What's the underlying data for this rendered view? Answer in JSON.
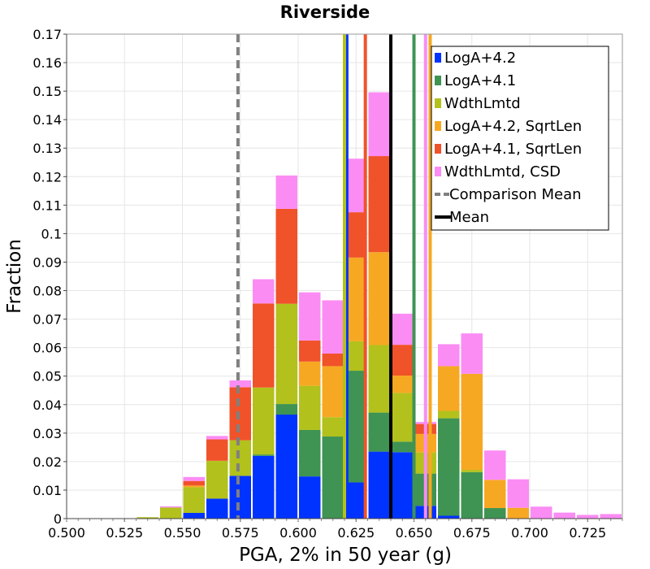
{
  "chart_data": {
    "type": "bar",
    "title": "Riverside",
    "xlabel": "PGA, 2% in 50 year (g)",
    "ylabel": "Fraction",
    "xlim": [
      0.5,
      0.74
    ],
    "ylim": [
      0,
      0.17
    ],
    "xticks": [
      "0.500",
      "0.525",
      "0.550",
      "0.575",
      "0.600",
      "0.625",
      "0.650",
      "0.675",
      "0.700",
      "0.725"
    ],
    "yticks": [
      "0",
      "0.01",
      "0.02",
      "0.03",
      "0.04",
      "0.05",
      "0.06",
      "0.07",
      "0.08",
      "0.09",
      "0.1",
      "0.11",
      "0.12",
      "0.13",
      "0.14",
      "0.15",
      "0.16",
      "0.17"
    ],
    "grid": true,
    "legend_position": "top-right",
    "bin_width": 0.01,
    "bin_centers": [
      0.505,
      0.515,
      0.525,
      0.535,
      0.545,
      0.555,
      0.565,
      0.575,
      0.585,
      0.595,
      0.605,
      0.615,
      0.625,
      0.635,
      0.645,
      0.655,
      0.665,
      0.675,
      0.685,
      0.695,
      0.705,
      0.715,
      0.725,
      0.735
    ],
    "series": [
      {
        "name": "LogA+4.2",
        "color": "#0033ff",
        "values": [
          0,
          0,
          0,
          0,
          0,
          0.002,
          0.007,
          0.015,
          0.022,
          0.0365,
          0.0148,
          0,
          0.0127,
          0.0235,
          0.0233,
          0.0045,
          0.001,
          0,
          0,
          0,
          0,
          0,
          0,
          0
        ]
      },
      {
        "name": "LogA+4.1",
        "color": "#3f9353",
        "values": [
          0,
          0,
          0,
          0,
          0,
          0,
          0,
          0,
          0.0005,
          0.0037,
          0.0163,
          0.0288,
          0.0392,
          0.0137,
          0.0037,
          0.0113,
          0.0342,
          0.0163,
          0.0037,
          0,
          0,
          0,
          0,
          0
        ]
      },
      {
        "name": "WdthLmtd",
        "color": "#b2c11c",
        "values": [
          0,
          0,
          0,
          0.0005,
          0.0039,
          0.009,
          0.0133,
          0.0125,
          0.0235,
          0.0352,
          0.0155,
          0.0068,
          0.0103,
          0.0237,
          0.0171,
          0.0074,
          0.0026,
          0.0008,
          0,
          0,
          0,
          0,
          0,
          0
        ]
      },
      {
        "name": "LogA+4.2, SqrtLen",
        "color": "#f7a823",
        "values": [
          0,
          0,
          0,
          0,
          0,
          0.0006,
          0,
          0,
          0,
          0,
          0.0085,
          0.0179,
          0.0294,
          0.0326,
          0.0061,
          0.0065,
          0.0157,
          0.0337,
          0.0099,
          0.0038,
          0,
          0,
          0,
          0
        ]
      },
      {
        "name": "LogA+4.1, SqrtLen",
        "color": "#f0522a",
        "values": [
          0,
          0,
          0,
          0,
          0,
          0.0016,
          0.0075,
          0.0186,
          0.0295,
          0.0333,
          0.0074,
          0.0044,
          0.0159,
          0.0337,
          0.0108,
          0.0035,
          0,
          0,
          0,
          0,
          0,
          0,
          0,
          0
        ]
      },
      {
        "name": "WdthLmtd, CSD",
        "color": "#fb8cf4",
        "values": [
          0,
          0,
          0,
          0,
          0.0004,
          0.0014,
          0.0012,
          0.0024,
          0.0085,
          0.0117,
          0.0169,
          0.0187,
          0.0188,
          0.0224,
          0.0109,
          0.0007,
          0.0077,
          0.0142,
          0.0103,
          0.01,
          0.0042,
          0.0021,
          0.0013,
          0.0016
        ]
      }
    ],
    "reference_lines": [
      {
        "name": "Comparison Mean",
        "style": "dashed",
        "color": "#808080",
        "x": 0.574
      },
      {
        "name": "Mean",
        "style": "solid",
        "color": "#000000",
        "x": 0.64
      }
    ],
    "mean_lines": [
      {
        "color": "#0033ff",
        "x": 0.621
      },
      {
        "color": "#b2c11c",
        "x": 0.62
      },
      {
        "color": "#f0522a",
        "x": 0.629
      },
      {
        "color": "#3f9353",
        "x": 0.65
      },
      {
        "color": "#f7a823",
        "x": 0.657
      },
      {
        "color": "#fb8cf4",
        "x": 0.655
      }
    ]
  }
}
